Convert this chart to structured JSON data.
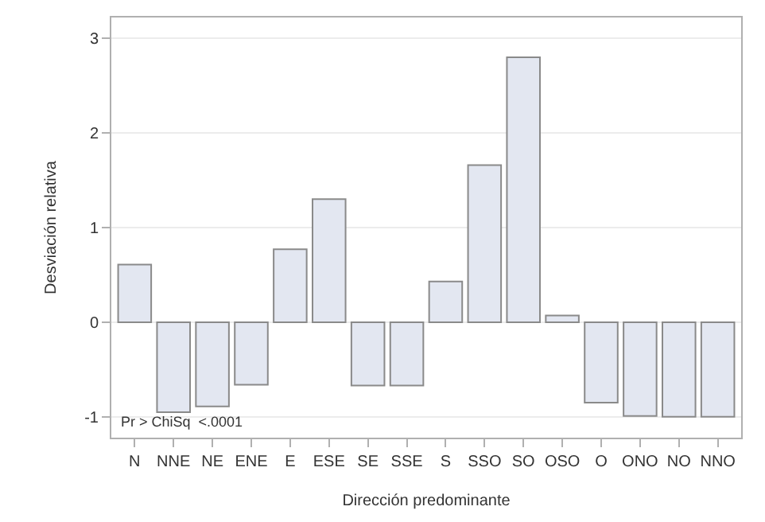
{
  "chart_data": {
    "type": "bar",
    "xlabel": "Dirección predominante",
    "ylabel": "Desviación relativa",
    "categories": [
      "N",
      "NNE",
      "NE",
      "ENE",
      "E",
      "ESE",
      "SE",
      "SSE",
      "S",
      "SSO",
      "SO",
      "OSO",
      "O",
      "ONO",
      "NO",
      "NNO"
    ],
    "values": [
      0.61,
      -0.95,
      -0.89,
      -0.66,
      0.77,
      1.3,
      -0.67,
      -0.67,
      0.43,
      1.66,
      2.8,
      0.07,
      -0.85,
      -0.99,
      -1.0,
      -1.0
    ],
    "color": "#e3e7f1",
    "ylim": [
      -1.22,
      3.22
    ],
    "yticks": [
      -1,
      0,
      1,
      2,
      3
    ],
    "grid": "y",
    "annotations": [
      "Pr > ChiSq  <.0001"
    ]
  }
}
